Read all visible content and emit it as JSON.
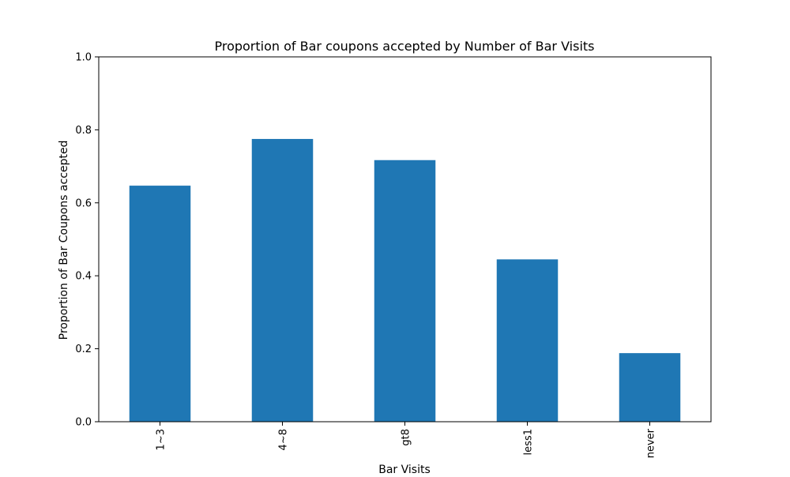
{
  "chart_data": {
    "type": "bar",
    "title": "Proportion of Bar coupons accepted by Number of Bar Visits",
    "xlabel": "Bar Visits",
    "ylabel": "Proportion of Bar Coupons accepted",
    "categories": [
      "1~3",
      "4~8",
      "gt8",
      "less1",
      "never"
    ],
    "values": [
      0.647,
      0.775,
      0.717,
      0.445,
      0.188
    ],
    "ylim": [
      0,
      1.0
    ],
    "yticks": [
      0.0,
      0.2,
      0.4,
      0.6,
      0.8,
      1.0
    ],
    "ytick_labels": [
      "0.0",
      "0.2",
      "0.4",
      "0.6",
      "0.8",
      "1.0"
    ],
    "bar_color": "#1f77b4",
    "grid": false,
    "legend": false
  }
}
